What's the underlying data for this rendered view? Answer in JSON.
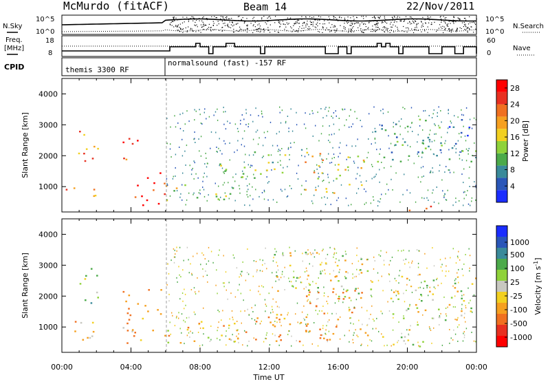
{
  "header": {
    "station": "McMurdo (fitACF)",
    "beam": "Beam 14",
    "date": "22/Nov/2011"
  },
  "left_labels": {
    "nsky": "N.Sky",
    "freq": "Freq.",
    "mhz": "[MHz]",
    "cpid": "CPID"
  },
  "right_labels": {
    "nsearch": "N.Search",
    "nave": "Nave"
  },
  "top_axis_labels": {
    "nsky_top": "10^5",
    "nsky_bottom": "10^0",
    "freq_top": "18",
    "freq_bottom": "8",
    "nsearch_top": "10^5",
    "nsearch_bottom": "10^0",
    "nave_top": "60",
    "nave_bottom": "0"
  },
  "cpid_text": {
    "left": "themis 3300 RF",
    "right": "normalsound (fast) -157 RF"
  },
  "axes": {
    "ylabel": "Slant Range [km]",
    "xlabel": "Time UT",
    "y_ticks": [
      "1000",
      "2000",
      "3000",
      "4000"
    ],
    "x_ticks": [
      "00:00",
      "04:00",
      "08:00",
      "12:00",
      "16:00",
      "20:00",
      "00:00"
    ]
  },
  "power_bar": {
    "label": "Power [dB]",
    "ticks": [
      "4",
      "8",
      "12",
      "16",
      "20",
      "24",
      "28"
    ],
    "colors": [
      "#1a2dff",
      "#2a56b8",
      "#3a8a9a",
      "#4caa4a",
      "#8fd23a",
      "#f2d020",
      "#f6a020",
      "#f07020",
      "#e83020",
      "#ff0000"
    ]
  },
  "velocity_bar": {
    "label": "Velocity [m s",
    "label_sup": "-1",
    "label_end": "]",
    "ticks": [
      "1000",
      "500",
      "100",
      "25",
      "-25",
      "-100",
      "-500",
      "-1000"
    ],
    "colors": [
      "#1a2dff",
      "#2a56b8",
      "#3a8a9a",
      "#4caa4a",
      "#8fd23a",
      "#c8c8c0",
      "#f2d020",
      "#f6a020",
      "#f07020",
      "#e83020",
      "#ff0000"
    ]
  },
  "chart_data": [
    {
      "type": "heatmap",
      "name": "Power",
      "xlabel": "Time UT",
      "ylabel": "Slant Range [km]",
      "xlim_hours": [
        0,
        24
      ],
      "ylim_km": [
        180,
        4500
      ],
      "colorbar_label": "Power [dB]",
      "colorbar_range": [
        0,
        30
      ],
      "regions": [
        {
          "t": [
            0.8,
            2.2
          ],
          "r": [
            1800,
            3000
          ],
          "level": 22
        },
        {
          "t": [
            0.2,
            2.0
          ],
          "r": [
            700,
            1200
          ],
          "level": 20
        },
        {
          "t": [
            3.5,
            4.8
          ],
          "r": [
            1800,
            2600
          ],
          "level": 24
        },
        {
          "t": [
            4.0,
            6.0
          ],
          "r": [
            400,
            1500
          ],
          "level": 26
        },
        {
          "t": [
            6.0,
            10.0
          ],
          "r": [
            500,
            1100
          ],
          "level": 16
        },
        {
          "t": [
            9.0,
            13.0
          ],
          "r": [
            1300,
            2200
          ],
          "level": 12
        },
        {
          "t": [
            14.0,
            17.5
          ],
          "r": [
            800,
            2200
          ],
          "level": 18
        },
        {
          "t": [
            18.5,
            21.5
          ],
          "r": [
            200,
            400
          ],
          "level": 22
        },
        {
          "t": [
            18.0,
            24.0
          ],
          "r": [
            1800,
            3200
          ],
          "level": 8
        }
      ]
    },
    {
      "type": "heatmap",
      "name": "Velocity",
      "xlabel": "Time UT",
      "ylabel": "Slant Range [km]",
      "xlim_hours": [
        0,
        24
      ],
      "ylim_km": [
        180,
        4500
      ],
      "colorbar_label": "Velocity [m s-1]",
      "colorbar_range": [
        -1000,
        1000
      ],
      "regions": [
        {
          "t": [
            0.8,
            2.2
          ],
          "r": [
            1800,
            3000
          ],
          "level": 150
        },
        {
          "t": [
            0.2,
            2.5
          ],
          "r": [
            600,
            1300
          ],
          "level": -120
        },
        {
          "t": [
            3.5,
            6.0
          ],
          "r": [
            500,
            2400
          ],
          "level": -200
        },
        {
          "t": [
            6.0,
            10.0
          ],
          "r": [
            400,
            1200
          ],
          "level": -150
        },
        {
          "t": [
            10.0,
            14.0
          ],
          "r": [
            500,
            1500
          ],
          "level": -250
        },
        {
          "t": [
            14.0,
            18.0
          ],
          "r": [
            600,
            2200
          ],
          "level": -300
        },
        {
          "t": [
            12.0,
            18.0
          ],
          "r": [
            2000,
            3500
          ],
          "level": 0
        },
        {
          "t": [
            18.5,
            21.0
          ],
          "r": [
            300,
            1100
          ],
          "level": 80
        },
        {
          "t": [
            19.0,
            24.0
          ],
          "r": [
            1200,
            2800
          ],
          "level": 5
        }
      ]
    }
  ]
}
